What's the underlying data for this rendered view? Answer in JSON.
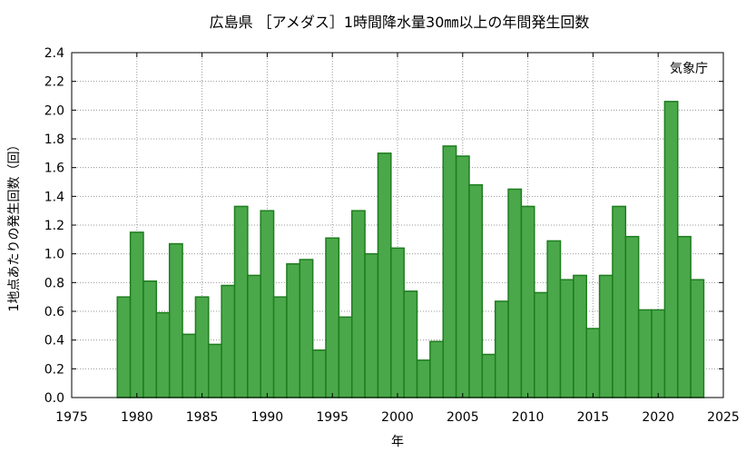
{
  "chart_data": {
    "type": "bar",
    "title": "広島県 ［アメダス］1時間降水量30㎜以上の年間発生回数",
    "xlabel": "年",
    "ylabel": "1地点あたりの発生回数（回）",
    "annotation": "気象庁",
    "xlim": [
      1975,
      2025
    ],
    "ylim": [
      0,
      2.4
    ],
    "xticks": [
      "1975",
      "1980",
      "1985",
      "1990",
      "1995",
      "2000",
      "2005",
      "2010",
      "2015",
      "2020",
      "2025"
    ],
    "yticks": [
      "0.0",
      "0.2",
      "0.4",
      "0.6",
      "0.8",
      "1.0",
      "1.2",
      "1.4",
      "1.6",
      "1.8",
      "2.0",
      "2.2",
      "2.4"
    ],
    "grid": true,
    "bar_color": "#4aa84a",
    "bar_edge_color": "#1e7d1e",
    "years": [
      1979,
      1980,
      1981,
      1982,
      1983,
      1984,
      1985,
      1986,
      1987,
      1988,
      1989,
      1990,
      1991,
      1992,
      1993,
      1994,
      1995,
      1996,
      1997,
      1998,
      1999,
      2000,
      2001,
      2002,
      2003,
      2004,
      2005,
      2006,
      2007,
      2008,
      2009,
      2010,
      2011,
      2012,
      2013,
      2014,
      2015,
      2016,
      2017,
      2018,
      2019,
      2020,
      2021,
      2022,
      2023
    ],
    "values": [
      0.7,
      1.15,
      0.81,
      0.59,
      1.07,
      0.44,
      0.7,
      0.37,
      0.78,
      1.33,
      0.85,
      1.3,
      0.7,
      0.93,
      0.96,
      0.33,
      1.11,
      0.56,
      1.3,
      1.0,
      1.7,
      1.04,
      0.74,
      0.26,
      0.39,
      1.75,
      1.68,
      1.48,
      0.3,
      0.67,
      1.45,
      1.33,
      0.73,
      1.09,
      0.82,
      0.85,
      0.48,
      0.85,
      1.33,
      1.12,
      0.61,
      0.61,
      2.06,
      1.12,
      0.82
    ]
  }
}
